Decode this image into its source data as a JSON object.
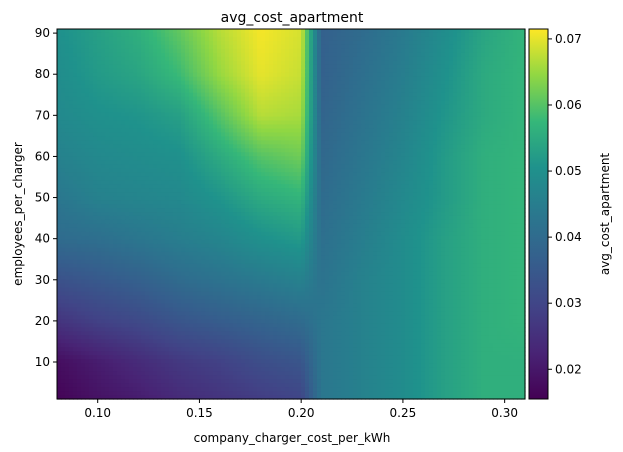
{
  "chart_data": {
    "type": "heatmap",
    "title": "avg_cost_apartment",
    "xlabel": "company_charger_cost_per_kWh",
    "ylabel": "employees_per_charger",
    "xlim": [
      0.08,
      0.31
    ],
    "ylim": [
      1,
      91
    ],
    "xticks": [
      0.1,
      0.15,
      0.2,
      0.25,
      0.3
    ],
    "xtick_labels": [
      "0.10",
      "0.15",
      "0.20",
      "0.25",
      "0.30"
    ],
    "yticks": [
      10,
      20,
      30,
      40,
      50,
      60,
      70,
      80,
      90
    ],
    "ytick_labels": [
      "10",
      "20",
      "30",
      "40",
      "50",
      "60",
      "70",
      "80",
      "90"
    ],
    "colorbar": {
      "label": "avg_cost_apartment",
      "range": [
        0.0155,
        0.0715
      ],
      "ticks": [
        0.02,
        0.03,
        0.04,
        0.05,
        0.06,
        0.07
      ],
      "tick_labels": [
        "0.02",
        "0.03",
        "0.04",
        "0.05",
        "0.06",
        "0.07"
      ],
      "colormap": "viridis"
    },
    "grid": false,
    "x": [
      0.08,
      0.1,
      0.12,
      0.14,
      0.16,
      0.18,
      0.2,
      0.21,
      0.23,
      0.25,
      0.27,
      0.29,
      0.31
    ],
    "y": [
      1,
      10,
      20,
      30,
      40,
      50,
      60,
      70,
      80,
      91
    ],
    "z": [
      [
        0.016,
        0.019,
        0.021,
        0.024,
        0.026,
        0.028,
        0.03,
        0.043,
        0.046,
        0.049,
        0.053,
        0.056,
        0.056
      ],
      [
        0.018,
        0.021,
        0.024,
        0.027,
        0.029,
        0.032,
        0.034,
        0.043,
        0.046,
        0.049,
        0.053,
        0.056,
        0.056
      ],
      [
        0.026,
        0.029,
        0.031,
        0.034,
        0.036,
        0.038,
        0.04,
        0.043,
        0.046,
        0.049,
        0.053,
        0.056,
        0.057
      ],
      [
        0.033,
        0.035,
        0.037,
        0.04,
        0.042,
        0.044,
        0.046,
        0.042,
        0.046,
        0.049,
        0.053,
        0.056,
        0.057
      ],
      [
        0.04,
        0.041,
        0.043,
        0.045,
        0.047,
        0.05,
        0.052,
        0.041,
        0.045,
        0.049,
        0.053,
        0.056,
        0.057
      ],
      [
        0.043,
        0.046,
        0.047,
        0.048,
        0.051,
        0.055,
        0.057,
        0.04,
        0.044,
        0.048,
        0.052,
        0.056,
        0.057
      ],
      [
        0.046,
        0.048,
        0.049,
        0.05,
        0.055,
        0.06,
        0.062,
        0.039,
        0.043,
        0.047,
        0.052,
        0.056,
        0.057
      ],
      [
        0.048,
        0.05,
        0.051,
        0.053,
        0.06,
        0.067,
        0.066,
        0.038,
        0.042,
        0.046,
        0.051,
        0.055,
        0.057
      ],
      [
        0.049,
        0.052,
        0.054,
        0.058,
        0.065,
        0.07,
        0.068,
        0.037,
        0.041,
        0.045,
        0.05,
        0.055,
        0.057
      ],
      [
        0.05,
        0.053,
        0.056,
        0.061,
        0.067,
        0.071,
        0.069,
        0.037,
        0.04,
        0.044,
        0.049,
        0.054,
        0.057
      ]
    ]
  }
}
